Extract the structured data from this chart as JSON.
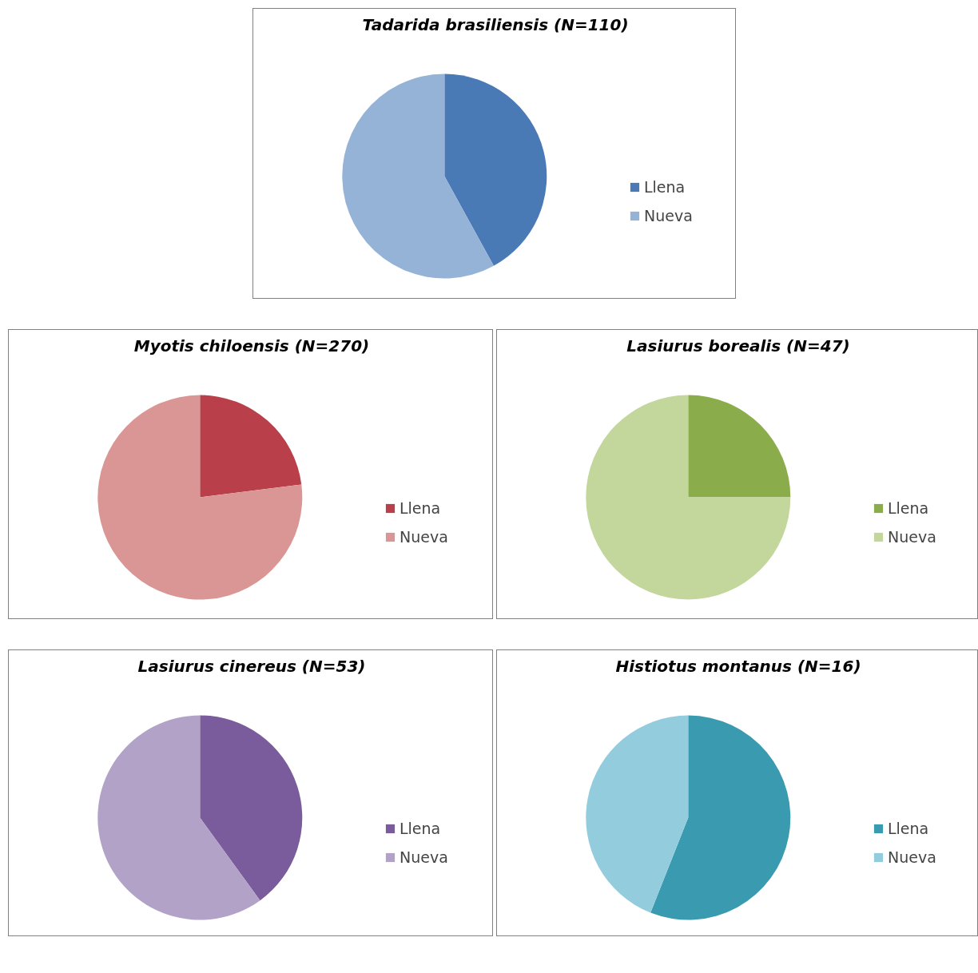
{
  "chart_data": [
    {
      "type": "pie",
      "title": "Tadarida brasiliensis (N=110)",
      "categories": [
        "Llena",
        "Nueva"
      ],
      "values": [
        42,
        58
      ],
      "colors": [
        "#4a7ab5",
        "#95b3d7"
      ],
      "legend": "right"
    },
    {
      "type": "pie",
      "title": "Myotis chiloensis (N=270)",
      "categories": [
        "Llena",
        "Nueva"
      ],
      "values": [
        23,
        77
      ],
      "colors": [
        "#b9404a",
        "#da9694"
      ],
      "legend": "right"
    },
    {
      "type": "pie",
      "title": "Lasiurus borealis (N=47)",
      "categories": [
        "Llena",
        "Nueva"
      ],
      "values": [
        25,
        75
      ],
      "colors": [
        "#8aac4a",
        "#c3d69b"
      ],
      "legend": "right"
    },
    {
      "type": "pie",
      "title": "Lasiurus cinereus (N=53)",
      "categories": [
        "Llena",
        "Nueva"
      ],
      "values": [
        40,
        60
      ],
      "colors": [
        "#7a5b9b",
        "#b3a2c7"
      ],
      "legend": "right"
    },
    {
      "type": "pie",
      "title": "Histiotus montanus (N=16)",
      "categories": [
        "Llena",
        "Nueva"
      ],
      "values": [
        56,
        44
      ],
      "colors": [
        "#3a9bb0",
        "#93cddd"
      ],
      "legend": "right"
    }
  ]
}
